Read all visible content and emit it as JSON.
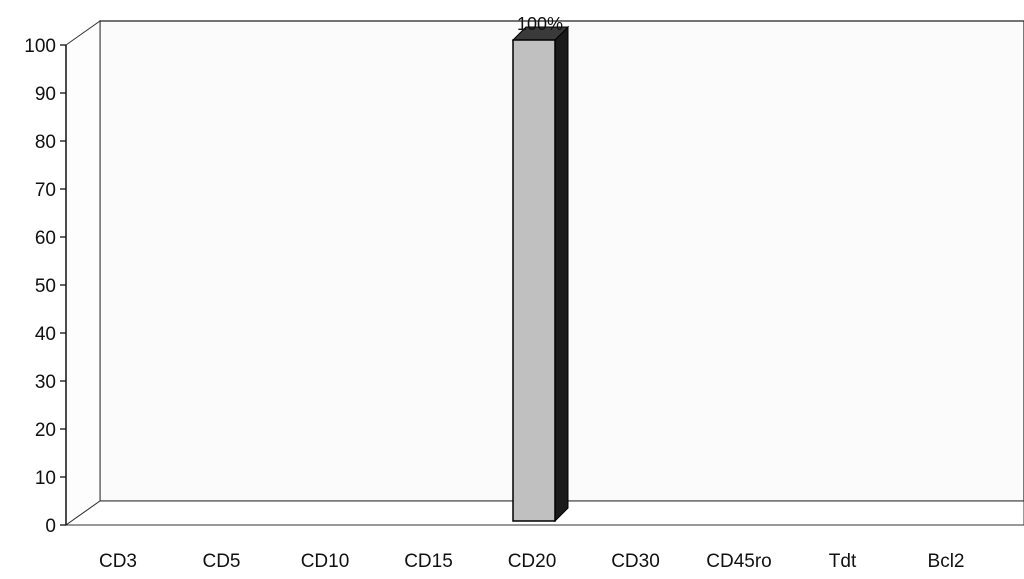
{
  "chart_data": {
    "type": "bar",
    "categories": [
      "CD3",
      "CD5",
      "CD10",
      "CD15",
      "CD20",
      "CD30",
      "CD45ro",
      "Tdt",
      "Bcl2"
    ],
    "values": [
      0,
      0,
      0,
      0,
      100,
      0,
      0,
      0,
      0
    ],
    "data_labels": [
      "",
      "",
      "",
      "",
      "100%",
      "",
      "",
      "",
      ""
    ],
    "title": "",
    "xlabel": "",
    "ylabel": "",
    "ylim": [
      0,
      100
    ],
    "yticks": [
      "0",
      "10",
      "20",
      "30",
      "40",
      "50",
      "60",
      "70",
      "80",
      "90",
      "100"
    ],
    "grid": false,
    "legend": "none",
    "three_d": true,
    "colors": {
      "bar_front": "#c0c0c0",
      "bar_side": "#1a1a1a",
      "bar_top": "#3a3a3a",
      "wall": "#fbfbfb",
      "axis": "#111111"
    }
  }
}
